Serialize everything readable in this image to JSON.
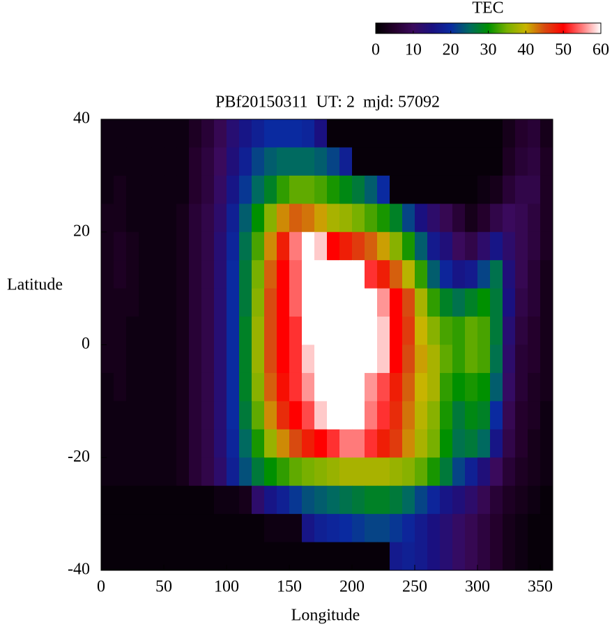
{
  "chart_data": {
    "type": "heatmap",
    "title": "PBf20150311  UT: 2  mjd: 57092",
    "x_label": "Longitude",
    "y_label": "Latitude",
    "x": [
      5,
      15,
      25,
      35,
      45,
      55,
      65,
      75,
      85,
      95,
      105,
      115,
      125,
      135,
      145,
      155,
      165,
      175,
      185,
      195,
      205,
      215,
      225,
      235,
      245,
      255,
      265,
      275,
      285,
      295,
      305,
      315,
      325,
      335,
      345,
      355
    ],
    "y": [
      37.5,
      32.5,
      27.5,
      22.5,
      17.5,
      12.5,
      7.5,
      2.5,
      -2.5,
      -7.5,
      -12.5,
      -17.5,
      -22.5,
      -27.5,
      -32.5,
      -37.5
    ],
    "z": [
      [
        2,
        2,
        2,
        2,
        2,
        2,
        2,
        4,
        6,
        9,
        13,
        16,
        18,
        20,
        20,
        20,
        19,
        15,
        1,
        1,
        1,
        1,
        1,
        1,
        1,
        1,
        1,
        1,
        1,
        1,
        1,
        1,
        3,
        5,
        6,
        3
      ],
      [
        2,
        2,
        2,
        2,
        2,
        2,
        2,
        5,
        7,
        10,
        14,
        18,
        22,
        24,
        25,
        25,
        25,
        24,
        22,
        18,
        1,
        1,
        1,
        1,
        1,
        1,
        1,
        1,
        1,
        1,
        1,
        1,
        4,
        6,
        7,
        4
      ],
      [
        2,
        3,
        2,
        2,
        2,
        2,
        2,
        5,
        7,
        11,
        16,
        21,
        25,
        28,
        32,
        34,
        34,
        33,
        31,
        29,
        27,
        24,
        20,
        1,
        1,
        1,
        1,
        1,
        1,
        1,
        2,
        3,
        6,
        8,
        8,
        4
      ],
      [
        3,
        3,
        2,
        2,
        2,
        2,
        3,
        6,
        8,
        12,
        18,
        24,
        30,
        36,
        42,
        44,
        43,
        41,
        38,
        37,
        35,
        33,
        31,
        28,
        22,
        15,
        12,
        9,
        6,
        3,
        5,
        8,
        10,
        9,
        7,
        4
      ],
      [
        3,
        4,
        3,
        2,
        2,
        2,
        3,
        6,
        8,
        13,
        19,
        26,
        33,
        42,
        48,
        55,
        60,
        58,
        50,
        48,
        46,
        44,
        41,
        36,
        31,
        24,
        17,
        14,
        10,
        8,
        12,
        16,
        12,
        9,
        7,
        4
      ],
      [
        3,
        4,
        3,
        2,
        2,
        2,
        3,
        6,
        8,
        13,
        20,
        27,
        35,
        44,
        50,
        54,
        60,
        60,
        60,
        60,
        60,
        52,
        48,
        44,
        39,
        32,
        24,
        19,
        16,
        17,
        22,
        26,
        14,
        9,
        6,
        3
      ],
      [
        3,
        3,
        3,
        2,
        2,
        2,
        3,
        6,
        8,
        13,
        20,
        27,
        36,
        45,
        50,
        54,
        60,
        60,
        60,
        60,
        60,
        60,
        56,
        50,
        45,
        38,
        32,
        28,
        26,
        28,
        30,
        27,
        15,
        8,
        6,
        3
      ],
      [
        3,
        3,
        2,
        2,
        2,
        2,
        3,
        6,
        8,
        13,
        20,
        28,
        37,
        45,
        50,
        52,
        60,
        60,
        60,
        60,
        60,
        60,
        58,
        50,
        46,
        40,
        36,
        33,
        32,
        34,
        33,
        27,
        13,
        7,
        5,
        3
      ],
      [
        3,
        3,
        2,
        2,
        2,
        2,
        3,
        6,
        8,
        13,
        20,
        28,
        37,
        45,
        50,
        52,
        58,
        60,
        60,
        60,
        60,
        60,
        58,
        50,
        45,
        41,
        38,
        34,
        32,
        34,
        33,
        26,
        12,
        6,
        5,
        3
      ],
      [
        2,
        3,
        2,
        2,
        2,
        2,
        3,
        6,
        8,
        13,
        20,
        28,
        36,
        44,
        49,
        52,
        56,
        60,
        60,
        60,
        60,
        56,
        53,
        48,
        44,
        40,
        38,
        32,
        30,
        31,
        30,
        24,
        11,
        6,
        4,
        3
      ],
      [
        2,
        2,
        2,
        2,
        2,
        2,
        3,
        6,
        8,
        13,
        20,
        27,
        34,
        42,
        47,
        50,
        53,
        58,
        60,
        60,
        60,
        55,
        52,
        47,
        43,
        39,
        36,
        31,
        27,
        29,
        28,
        20,
        9,
        5,
        4,
        2
      ],
      [
        2,
        2,
        2,
        2,
        2,
        2,
        3,
        6,
        8,
        13,
        19,
        25,
        31,
        37,
        42,
        45,
        48,
        50,
        52,
        55,
        55,
        52,
        48,
        46,
        42,
        38,
        35,
        30,
        26,
        27,
        25,
        16,
        8,
        5,
        3,
        2
      ],
      [
        2,
        2,
        2,
        2,
        2,
        2,
        3,
        6,
        8,
        12,
        18,
        23,
        27,
        30,
        32,
        34,
        35,
        36,
        37,
        38,
        38,
        38,
        38,
        37,
        36,
        34,
        31,
        27,
        22,
        18,
        14,
        10,
        6,
        4,
        3,
        2
      ],
      [
        1,
        1,
        1,
        1,
        1,
        1,
        1,
        1,
        1,
        2,
        2,
        3,
        12,
        16,
        18,
        21,
        23,
        24,
        25,
        26,
        27,
        28,
        28,
        27,
        25,
        22,
        19,
        16,
        14,
        12,
        9,
        6,
        4,
        3,
        2,
        1
      ],
      [
        1,
        1,
        1,
        1,
        1,
        1,
        1,
        1,
        1,
        1,
        1,
        1,
        1,
        2,
        2,
        2,
        16,
        18,
        19,
        20,
        21,
        22,
        22,
        21,
        19,
        17,
        15,
        13,
        11,
        9,
        7,
        5,
        3,
        2,
        1,
        1
      ],
      [
        1,
        1,
        1,
        1,
        1,
        1,
        1,
        1,
        1,
        1,
        1,
        1,
        1,
        1,
        1,
        1,
        1,
        1,
        1,
        1,
        1,
        1,
        1,
        17,
        18,
        17,
        15,
        13,
        11,
        9,
        7,
        5,
        3,
        2,
        1,
        1
      ]
    ],
    "xlim": [
      0,
      360
    ],
    "xticks": [
      0,
      50,
      100,
      150,
      200,
      250,
      300,
      350
    ],
    "ylim": [
      -40,
      40
    ],
    "yticks": [
      -40,
      -20,
      0,
      20,
      40
    ],
    "colorbar": {
      "title": "TEC",
      "lim": [
        0,
        60
      ],
      "ticks": [
        0,
        10,
        20,
        30,
        40,
        50,
        60
      ],
      "colormap": [
        "#000000",
        "#24002c",
        "#3a0a5c",
        "#1a1080",
        "#0a2aa0",
        "#006a60",
        "#009000",
        "#78b000",
        "#c8b400",
        "#d84a10",
        "#ff0000",
        "#ff7a7a",
        "#ffffff"
      ]
    }
  }
}
